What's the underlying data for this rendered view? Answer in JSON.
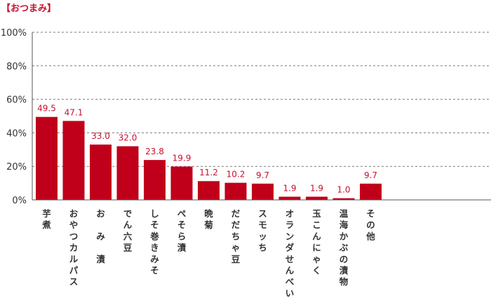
{
  "chart_data": {
    "type": "bar",
    "title": "【おつまみ】",
    "categories": [
      "芋煮",
      "おやつカルパス",
      "お み 漬",
      "でん六豆",
      "しそ巻きみそ",
      "ぺそら漬",
      "晩菊",
      "だだちゃ豆",
      "スモッち",
      "オランダせんべい",
      "玉こんにゃく",
      "温海かぶの漬物",
      "その他"
    ],
    "values": [
      49.5,
      47.1,
      33.0,
      32.0,
      23.8,
      19.9,
      11.2,
      10.2,
      9.7,
      1.9,
      1.9,
      1.0,
      9.7
    ],
    "value_labels": [
      "49.5",
      "47.1",
      "33.0",
      "32.0",
      "23.8",
      "19.9",
      "11.2",
      "10.2",
      "9.7",
      "1.9",
      "1.9",
      "1.0",
      "9.7"
    ],
    "yticks": [
      0,
      20,
      40,
      60,
      80,
      100
    ],
    "ytick_labels": [
      "0%",
      "20%",
      "40%",
      "60%",
      "80%",
      "100%"
    ],
    "ylim": [
      0,
      100
    ],
    "xlabel": "",
    "ylabel": "",
    "grid": true,
    "bar_color": "#c0001a",
    "label_color": "#c8102e"
  }
}
